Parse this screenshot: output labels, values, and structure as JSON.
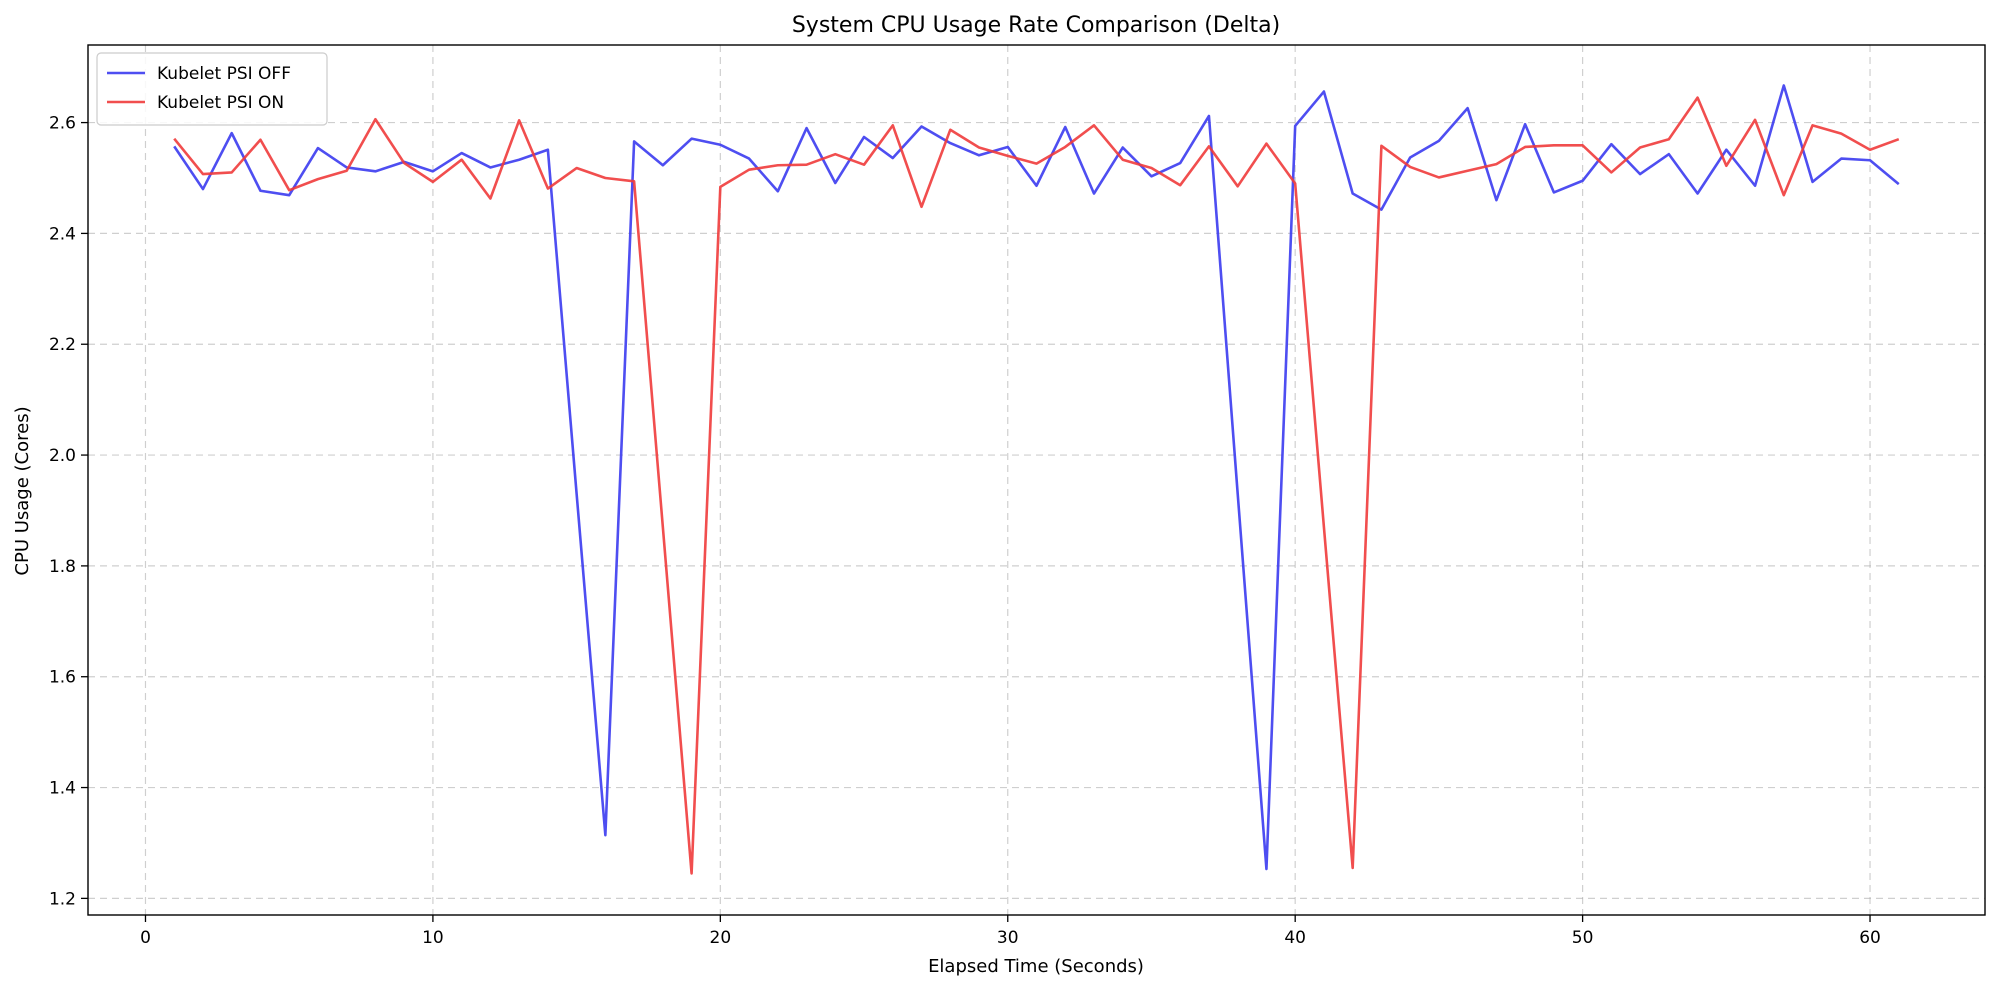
{
  "chart_data": {
    "type": "line",
    "title": "System CPU Usage Rate Comparison (Delta)",
    "xlabel": "Elapsed Time (Seconds)",
    "ylabel": "CPU Usage (Cores)",
    "xlim": [
      -2,
      64
    ],
    "ylim": [
      1.17,
      2.74
    ],
    "xticks": [
      0,
      10,
      20,
      30,
      40,
      50,
      60
    ],
    "yticks": [
      1.2,
      1.4,
      1.6,
      1.8,
      2.0,
      2.2,
      2.4,
      2.6
    ],
    "ytick_labels": [
      "1.2",
      "1.4",
      "1.6",
      "1.8",
      "2.0",
      "2.2",
      "2.4",
      "2.6"
    ],
    "grid": true,
    "legend_position": "top-left",
    "x": [
      1,
      2,
      3,
      4,
      5,
      6,
      7,
      8,
      9,
      10,
      11,
      12,
      13,
      14,
      15,
      16,
      17,
      18,
      19,
      20,
      21,
      22,
      23,
      24,
      25,
      26,
      27,
      28,
      29,
      30,
      31,
      32,
      33,
      34,
      35,
      36,
      37,
      38,
      39,
      40,
      41,
      42,
      43,
      44,
      45,
      46,
      47,
      48,
      49,
      50,
      51,
      52,
      53,
      54,
      55,
      56,
      57,
      58,
      59,
      60,
      61
    ],
    "series": [
      {
        "name": "Kubelet PSI OFF",
        "color": "#3b3bf0",
        "values": [
          2.557,
          2.48,
          2.581,
          2.477,
          2.469,
          2.554,
          2.519,
          2.512,
          2.529,
          2.512,
          2.545,
          2.519,
          2.533,
          2.551,
          1.93,
          1.314,
          2.566,
          2.523,
          2.571,
          2.56,
          2.535,
          2.476,
          2.59,
          2.491,
          2.574,
          2.536,
          2.593,
          2.563,
          2.541,
          2.556,
          2.486,
          2.592,
          2.472,
          2.555,
          2.503,
          2.527,
          2.612,
          1.93,
          1.253,
          2.594,
          2.656,
          2.472,
          2.443,
          2.537,
          2.567,
          2.626,
          2.46,
          2.597,
          2.474,
          2.495,
          2.561,
          2.507,
          2.543,
          2.472,
          2.551,
          2.486,
          2.667,
          2.493,
          2.535,
          2.532,
          2.489
        ]
      },
      {
        "name": "Kubelet PSI ON",
        "color": "#f03b3b",
        "values": [
          2.571,
          2.507,
          2.51,
          2.569,
          2.478,
          2.498,
          2.513,
          2.606,
          2.527,
          2.493,
          2.533,
          2.463,
          2.604,
          2.481,
          2.518,
          2.5,
          2.494,
          1.87,
          1.245,
          2.484,
          2.515,
          2.523,
          2.524,
          2.543,
          2.524,
          2.595,
          2.448,
          2.587,
          2.555,
          2.54,
          2.526,
          2.556,
          2.595,
          2.533,
          2.518,
          2.487,
          2.557,
          2.485,
          2.562,
          2.49,
          1.87,
          1.255,
          2.558,
          2.52,
          2.501,
          2.513,
          2.525,
          2.556,
          2.559,
          2.559,
          2.51,
          2.555,
          2.57,
          2.645,
          2.522,
          2.605,
          2.469,
          2.595,
          2.58,
          2.551,
          2.57
        ]
      }
    ]
  }
}
